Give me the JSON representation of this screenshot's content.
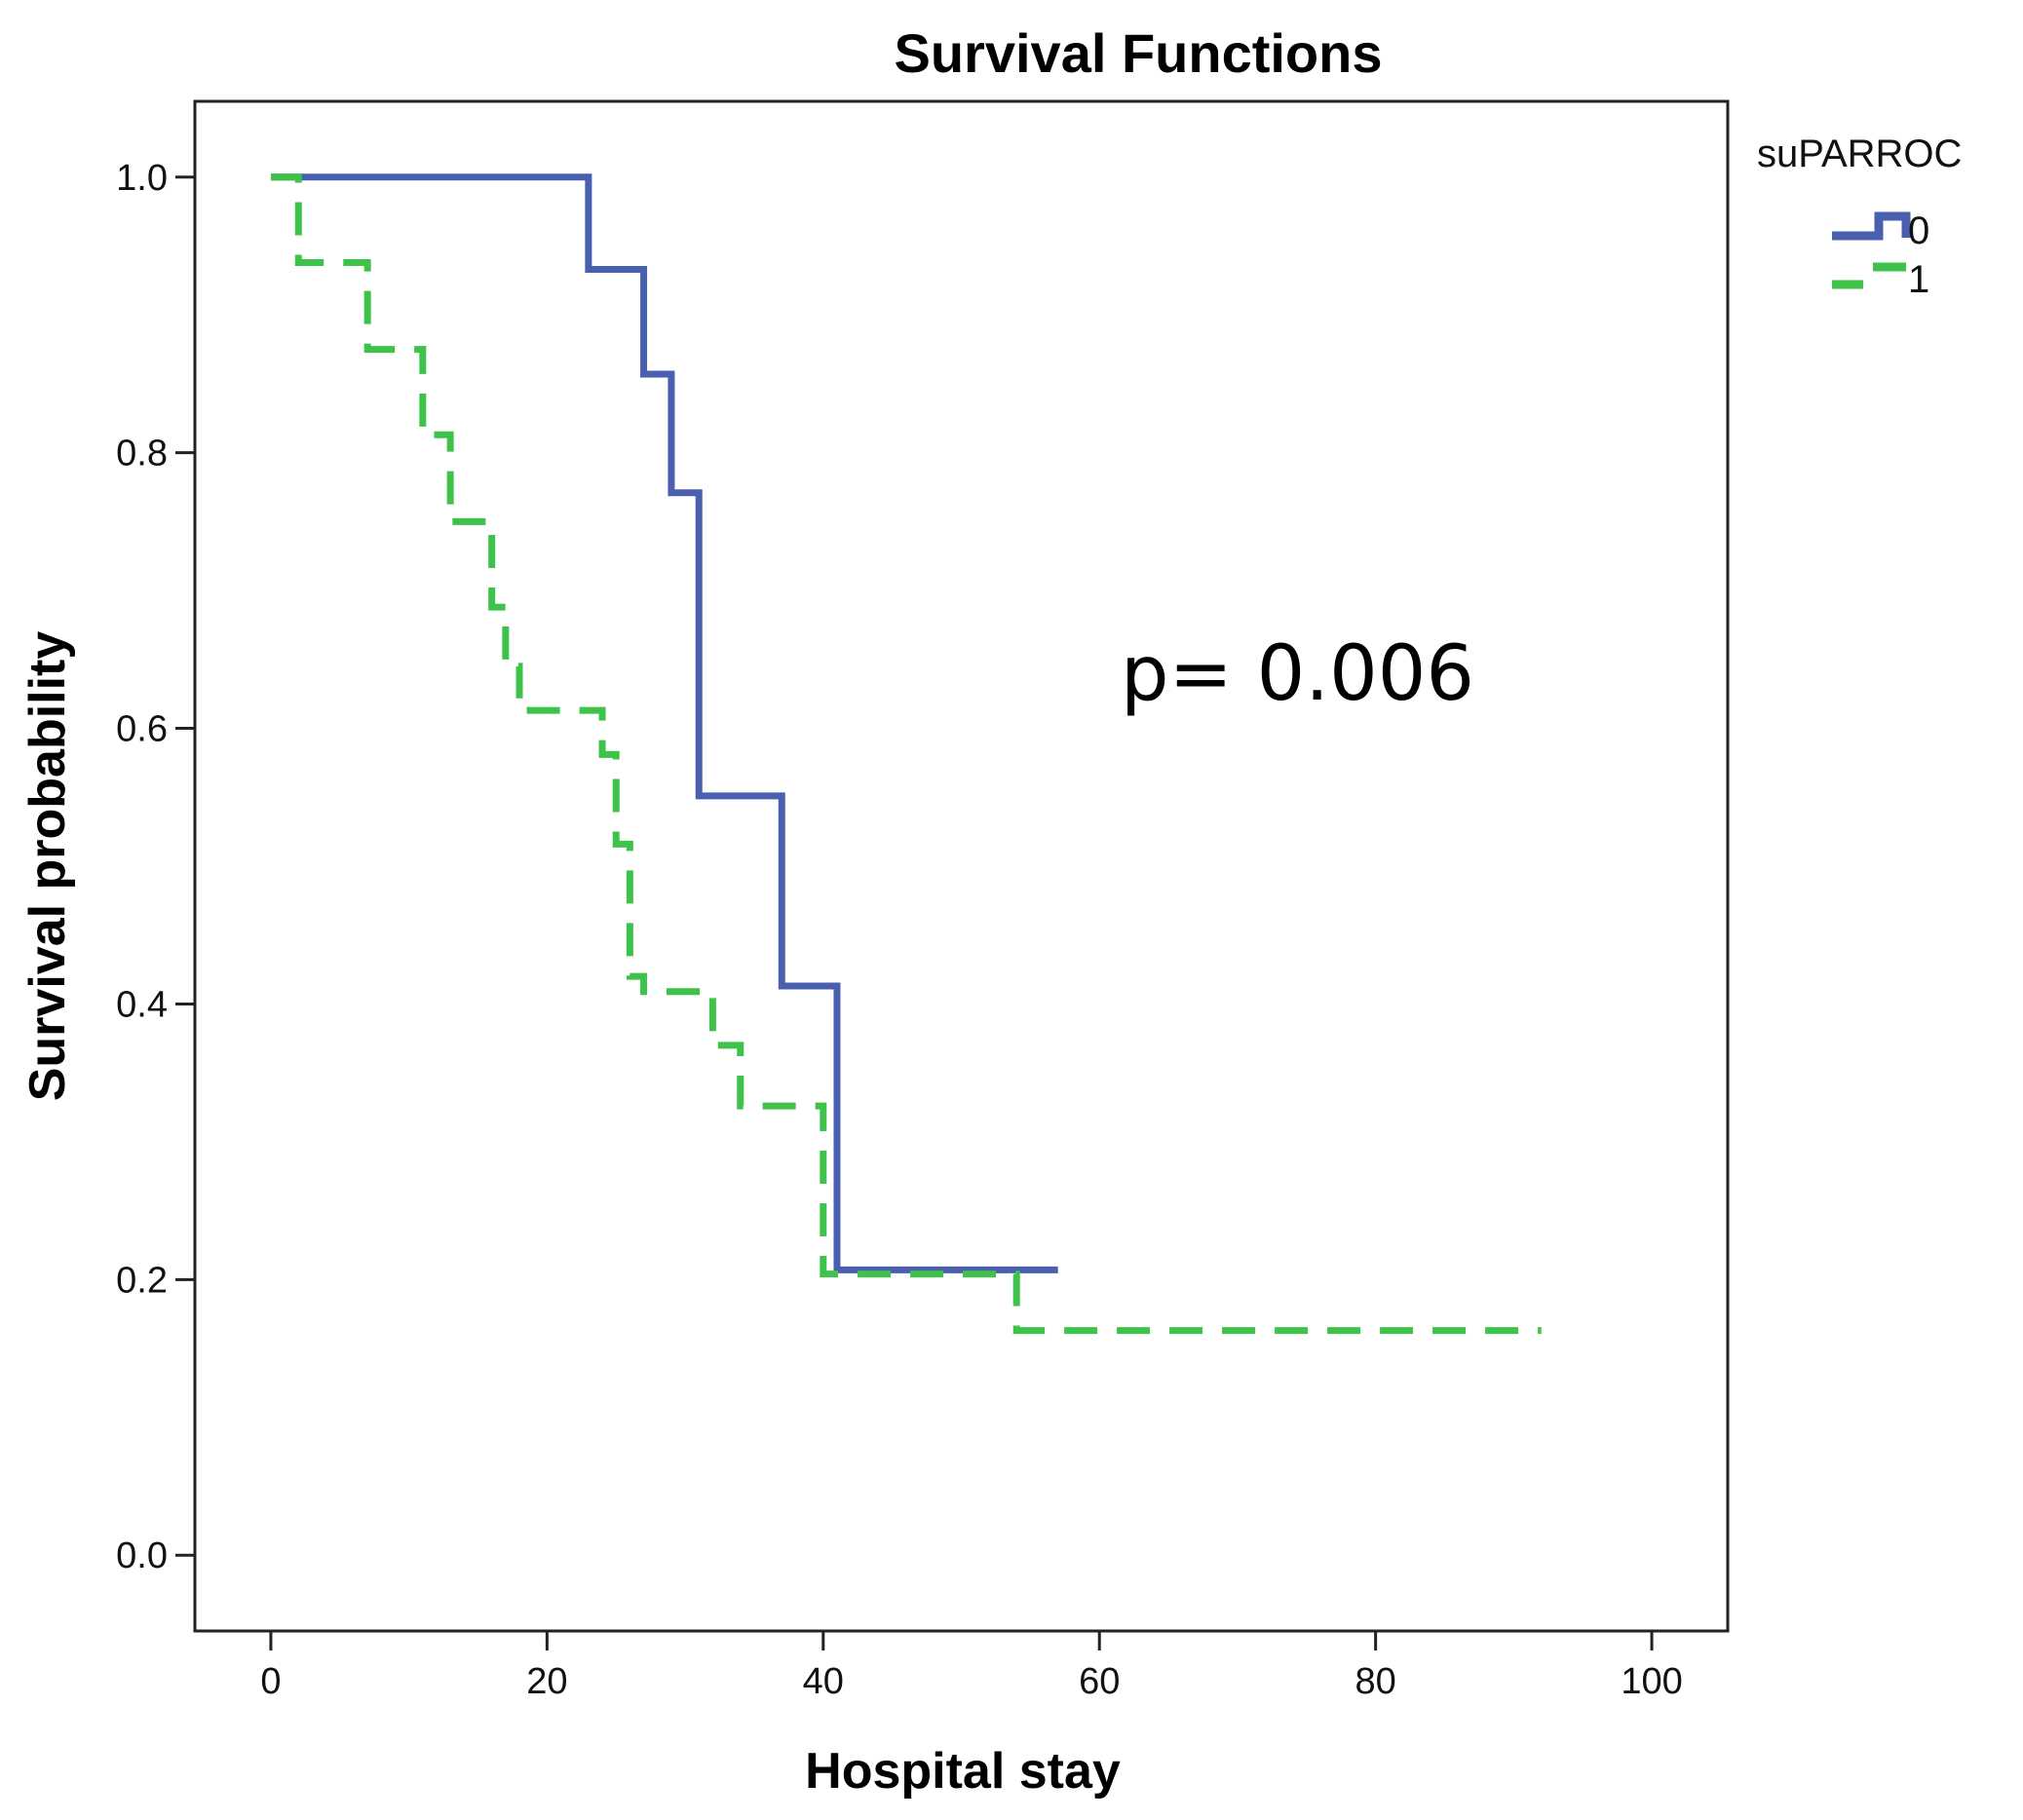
{
  "chart_data": {
    "type": "line",
    "subtype": "kaplan-meier step",
    "title": "Survival Functions",
    "xlabel": "Hospital stay",
    "ylabel": "Survival probability",
    "xlim": [
      -5.5,
      105.5
    ],
    "ylim": [
      -0.055,
      1.055
    ],
    "x_ticks": [
      0,
      20,
      40,
      60,
      80,
      100
    ],
    "x_tick_labels": [
      "0",
      "20",
      "40",
      "60",
      "80",
      "100"
    ],
    "y_ticks": [
      0.0,
      0.2,
      0.4,
      0.6,
      0.8,
      1.0
    ],
    "y_tick_labels": [
      "0.0",
      "0.2",
      "0.4",
      "0.6",
      "0.8",
      "1.0"
    ],
    "grid": false,
    "legend": {
      "title": "suPARROC",
      "placement": "right-outside-top"
    },
    "annotation": "p= 0.006",
    "series": [
      {
        "name": "0",
        "color": "#4a5fb0",
        "style": "solid",
        "steps": [
          [
            0,
            1.0
          ],
          [
            23,
            0.933
          ],
          [
            27,
            0.857
          ],
          [
            29,
            0.771
          ],
          [
            31,
            0.551
          ],
          [
            37,
            0.413
          ],
          [
            41,
            0.207
          ],
          [
            57,
            0.207
          ]
        ]
      },
      {
        "name": "1",
        "color": "#3ec24a",
        "style": "dashed",
        "steps": [
          [
            0,
            1.0
          ],
          [
            2,
            0.938
          ],
          [
            7,
            0.875
          ],
          [
            11,
            0.813
          ],
          [
            13,
            0.75
          ],
          [
            16,
            0.688
          ],
          [
            17,
            0.645
          ],
          [
            18,
            0.613
          ],
          [
            24,
            0.581
          ],
          [
            25,
            0.516
          ],
          [
            26,
            0.42
          ],
          [
            27,
            0.409
          ],
          [
            32,
            0.37
          ],
          [
            34,
            0.326
          ],
          [
            40,
            0.204
          ],
          [
            54,
            0.163
          ],
          [
            92,
            0.163
          ]
        ]
      }
    ]
  }
}
